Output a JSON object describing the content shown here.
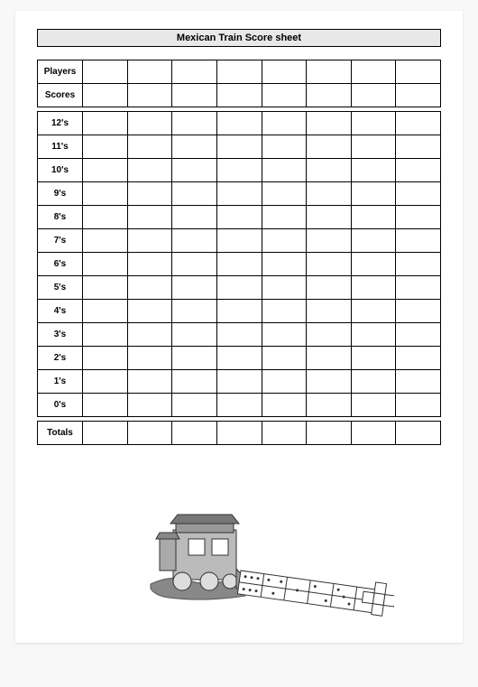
{
  "title": "Mexican Train Score sheet",
  "header_rows": [
    "Players",
    "Scores"
  ],
  "round_rows": [
    "12's",
    "11's",
    "10's",
    "9's",
    "8's",
    "7's",
    "6's",
    "5's",
    "4's",
    "3's",
    "2's",
    "1's",
    "0's"
  ],
  "footer_row": "Totals",
  "player_columns": 8,
  "colors": {
    "title_bg": "#e8e8e8",
    "border": "#000000",
    "page_bg": "#ffffff",
    "backdrop": "#f8f8f8"
  },
  "art": {
    "type": "train-domino-illustration",
    "description": "grayscale locomotive with domino track"
  }
}
